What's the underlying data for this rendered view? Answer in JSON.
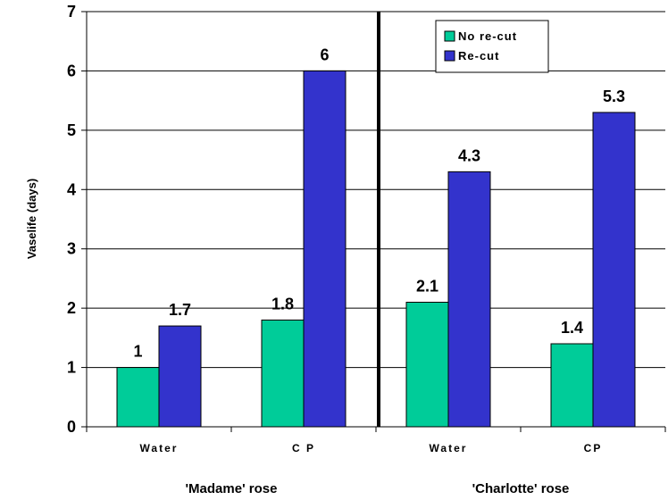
{
  "chart_data": {
    "type": "bar",
    "ylabel": "Vaselife (days)",
    "xlabel": "",
    "title": "",
    "ylim": [
      0,
      7
    ],
    "yticks": [
      0,
      1,
      2,
      3,
      4,
      5,
      6,
      7
    ],
    "grid": true,
    "legend_position": "top-right",
    "categories": [
      "Water",
      "C P",
      "Water",
      "CP"
    ],
    "groups": [
      {
        "label": "'Madame' rose",
        "categories": [
          0,
          1
        ]
      },
      {
        "label": "'Charlotte' rose",
        "categories": [
          2,
          3
        ]
      }
    ],
    "series": [
      {
        "name": "No re-cut",
        "color": "#00cc99",
        "values": [
          1,
          1.8,
          2.1,
          1.4
        ],
        "labels": [
          "1",
          "1.8",
          "2.1",
          "1.4"
        ]
      },
      {
        "name": "Re-cut",
        "color": "#3333cc",
        "values": [
          1.7,
          6,
          4.3,
          5.3
        ],
        "labels": [
          "1.7",
          "6",
          "4.3",
          "5.3"
        ]
      }
    ]
  }
}
